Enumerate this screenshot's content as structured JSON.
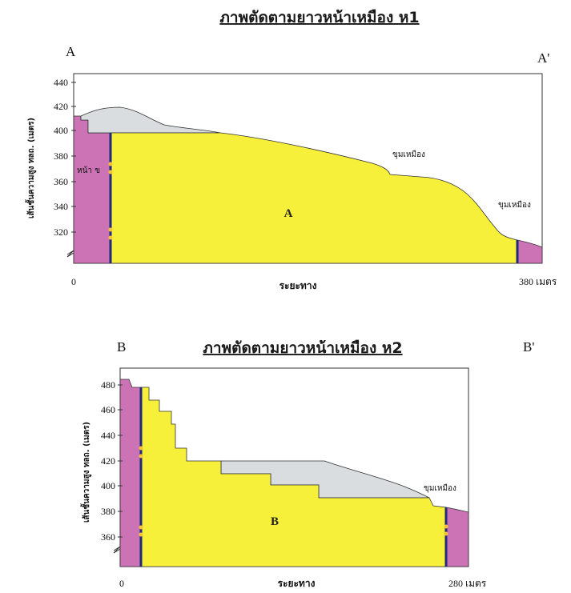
{
  "colors": {
    "ore": "#f6f03a",
    "overburden": "#d9dde0",
    "country_rock": "#cc73b6",
    "fault": "#1f2a78",
    "frame": "#333333"
  },
  "section1": {
    "title": "ภาพตัดตามยาวหน้าเหมือง ห1",
    "corner_left": "A",
    "corner_right": "A'",
    "y_axis_label": "เส้นชั้นความสูง ทลถ. (เมตร)",
    "y_ticks": [
      "440",
      "420",
      "400",
      "380",
      "360",
      "340",
      "320"
    ],
    "x_start": "0",
    "x_end": "380 เมตร",
    "x_label": "ระยะทาง",
    "zone_label": "A",
    "left_annotation": "หน้า ข",
    "annotations": [
      "ขุมเหมือง",
      "ขุมเหมือง"
    ]
  },
  "section2": {
    "title": "ภาพตัดตามยาวหน้าเหมือง ห2",
    "corner_left": "B",
    "corner_right": "B'",
    "y_axis_label": "เส้นชั้นความสูง ทลถ. (เมตร)",
    "y_ticks": [
      "480",
      "460",
      "440",
      "420",
      "400",
      "380",
      "360"
    ],
    "x_start": "0",
    "x_end": "280 เมตร",
    "x_label": "ระยะทาง",
    "zone_label": "B",
    "annotations": [
      "ขุมเหมือง"
    ]
  }
}
